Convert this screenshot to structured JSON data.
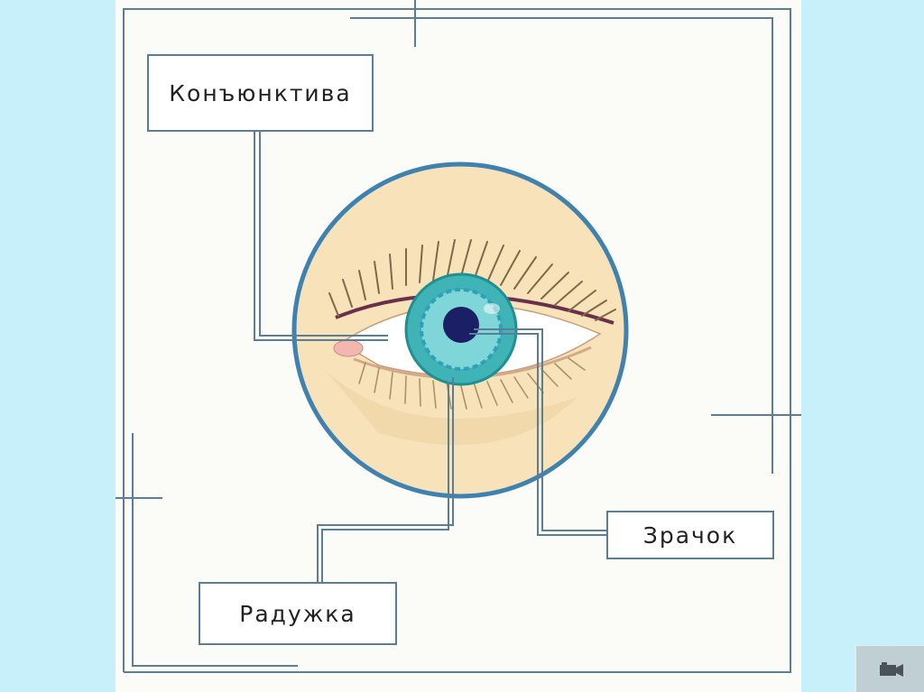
{
  "labels": {
    "conjunctiva": "Конъюнктива",
    "iris": "Радужка",
    "pupil": "Зрачок"
  },
  "icons": {
    "nav": "video-camera-icon"
  },
  "colors": {
    "background": "#c8f0fa",
    "slide": "#fbfcf8",
    "frame_line": "#5b7e95",
    "circle_border": "#3f82b0",
    "skin": "#f7e2b9",
    "iris": "#3fb3b5",
    "pupil": "#1a1f66"
  }
}
